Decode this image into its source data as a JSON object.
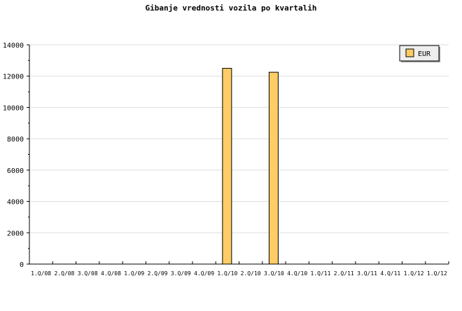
{
  "chart_data": {
    "type": "bar",
    "title": "Gibanje vrednosti vozila po kvartalih",
    "categories": [
      "1.Q/08",
      "2.Q/08",
      "3.Q/08",
      "4.Q/08",
      "1.Q/09",
      "2.Q/09",
      "3.Q/09",
      "4.Q/09",
      "1.Q/10",
      "2.Q/10",
      "3.Q/10",
      "4.Q/10",
      "1.Q/11",
      "2.Q/11",
      "3.Q/11",
      "4.Q/11",
      "1.Q/12",
      "1.Q/12"
    ],
    "series": [
      {
        "name": "EUR",
        "values": [
          0,
          0,
          0,
          0,
          0,
          0,
          0,
          0,
          12500,
          0,
          12250,
          0,
          0,
          0,
          0,
          0,
          0,
          0
        ],
        "color": "#ffcc66"
      }
    ],
    "ylim": [
      0,
      14000
    ],
    "yticks": [
      "0",
      "2000",
      "4000",
      "6000",
      "8000",
      "10000",
      "12000",
      "14000"
    ],
    "grid": true,
    "legend": "top-right"
  }
}
